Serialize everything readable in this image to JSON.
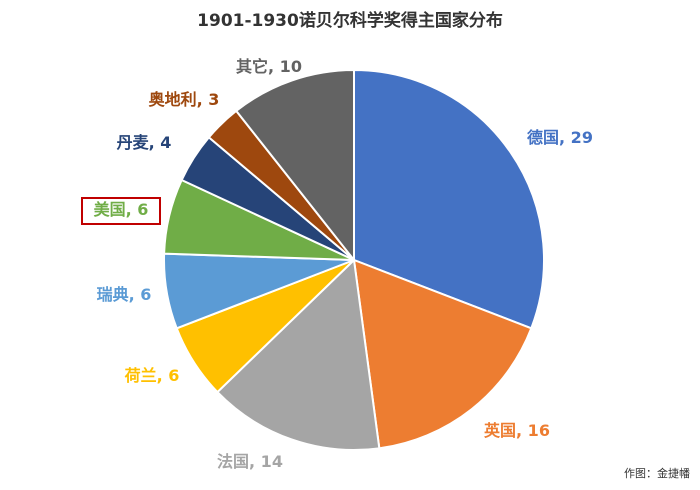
{
  "chart_data": {
    "type": "pie",
    "title": "1901-1930诺贝尔科学奖得主国家分布",
    "slices": [
      {
        "label": "德国",
        "value": 29,
        "color": "#4472C4"
      },
      {
        "label": "英国",
        "value": 16,
        "color": "#ED7D31"
      },
      {
        "label": "法国",
        "value": 14,
        "color": "#A5A5A5"
      },
      {
        "label": "荷兰",
        "value": 6,
        "color": "#FFC000"
      },
      {
        "label": "瑞典",
        "value": 6,
        "color": "#5B9BD5"
      },
      {
        "label": "美国",
        "value": 6,
        "color": "#70AD47",
        "highlighted": true
      },
      {
        "label": "丹麦",
        "value": 4,
        "color": "#264478"
      },
      {
        "label": "奥地利",
        "value": 3,
        "color": "#9E480E"
      },
      {
        "label": "其它",
        "value": 10,
        "color": "#636363"
      }
    ],
    "label_separator": ", ",
    "credit": "作图：金捷幡",
    "highlight_color": "#C00000"
  }
}
